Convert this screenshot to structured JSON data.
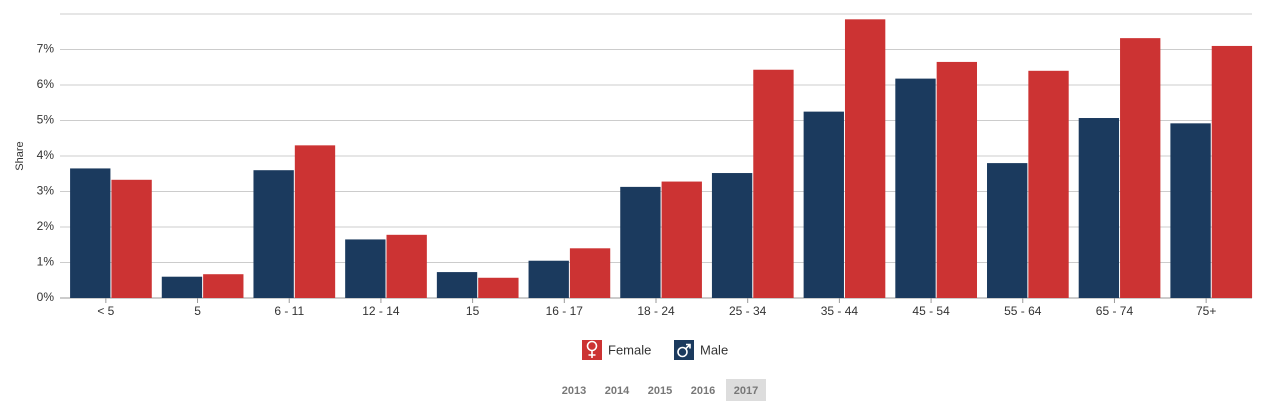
{
  "chart_data": {
    "type": "bar",
    "y_axis_label": "Share",
    "categories": [
      "< 5",
      "5",
      "6 - 11",
      "12 - 14",
      "15",
      "16 - 17",
      "18 - 24",
      "25 - 34",
      "35 - 44",
      "45 - 54",
      "55 - 64",
      "65 - 74",
      "75+"
    ],
    "series": [
      {
        "name": "Male",
        "color": "#1b3a5e",
        "values": [
          3.65,
          0.6,
          3.6,
          1.65,
          0.73,
          1.05,
          3.13,
          3.52,
          5.25,
          6.18,
          3.8,
          5.07,
          4.92
        ]
      },
      {
        "name": "Female",
        "color": "#cc3333",
        "values": [
          3.33,
          0.67,
          4.3,
          1.78,
          0.57,
          1.4,
          3.28,
          6.43,
          7.85,
          6.65,
          6.4,
          7.32,
          7.1
        ]
      }
    ],
    "ylim": [
      0,
      8
    ],
    "yticks": [
      {
        "value": 0,
        "label": "0%"
      },
      {
        "value": 1,
        "label": "1%"
      },
      {
        "value": 2,
        "label": "2%"
      },
      {
        "value": 3,
        "label": "3%"
      },
      {
        "value": 4,
        "label": "4%"
      },
      {
        "value": 5,
        "label": "5%"
      },
      {
        "value": 6,
        "label": "6%"
      },
      {
        "value": 7,
        "label": "7%"
      }
    ],
    "grid": true,
    "legend_order": [
      1,
      0
    ]
  },
  "years": [
    "2013",
    "2014",
    "2015",
    "2016",
    "2017"
  ],
  "selected_year": "2017"
}
